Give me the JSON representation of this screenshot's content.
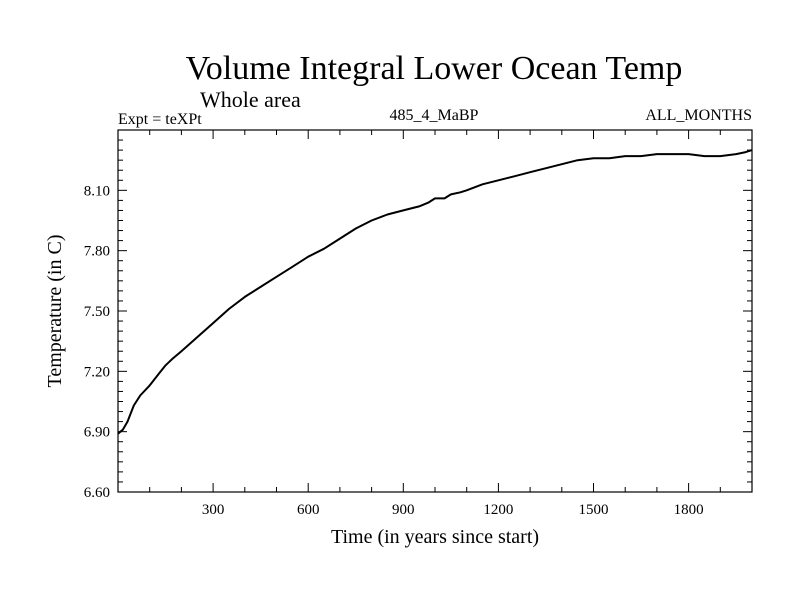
{
  "chart_data": {
    "type": "line",
    "title": "Volume Integral Lower Ocean Temp",
    "subtitle": "Whole area",
    "top_left_label": "Expt = teXPt",
    "top_center_label": "485_4_MaBP",
    "top_right_label": "ALL_MONTHS",
    "xlabel": "Time (in years since start)",
    "ylabel": "Temperature (in C)",
    "xlim": [
      0,
      2000
    ],
    "ylim": [
      6.6,
      8.4
    ],
    "xticks": [
      300,
      600,
      900,
      1200,
      1500,
      1800
    ],
    "xtick_labels": [
      "300",
      "600",
      "900",
      "1200",
      "1500",
      "1800"
    ],
    "yticks": [
      6.6,
      6.9,
      7.2,
      7.5,
      7.8,
      8.1
    ],
    "ytick_labels": [
      "6.60",
      "6.90",
      "7.20",
      "7.50",
      "7.80",
      "8.10"
    ],
    "grid": false,
    "series": [
      {
        "name": "Volume Integral Lower Ocean Temp",
        "color": "#000000",
        "x": [
          0,
          15,
          30,
          50,
          70,
          100,
          130,
          150,
          170,
          200,
          250,
          300,
          350,
          400,
          450,
          500,
          550,
          600,
          650,
          700,
          750,
          800,
          850,
          900,
          950,
          980,
          1000,
          1030,
          1050,
          1080,
          1100,
          1150,
          1200,
          1250,
          1300,
          1350,
          1400,
          1450,
          1500,
          1550,
          1600,
          1650,
          1700,
          1750,
          1800,
          1850,
          1900,
          1950,
          1980,
          2000
        ],
        "values": [
          6.89,
          6.91,
          6.95,
          7.03,
          7.08,
          7.13,
          7.19,
          7.23,
          7.26,
          7.3,
          7.37,
          7.44,
          7.51,
          7.57,
          7.62,
          7.67,
          7.72,
          7.77,
          7.81,
          7.86,
          7.91,
          7.95,
          7.98,
          8.0,
          8.02,
          8.04,
          8.06,
          8.06,
          8.08,
          8.09,
          8.1,
          8.13,
          8.15,
          8.17,
          8.19,
          8.21,
          8.23,
          8.25,
          8.26,
          8.26,
          8.27,
          8.27,
          8.28,
          8.28,
          8.28,
          8.27,
          8.27,
          8.28,
          8.29,
          8.3
        ]
      }
    ]
  }
}
